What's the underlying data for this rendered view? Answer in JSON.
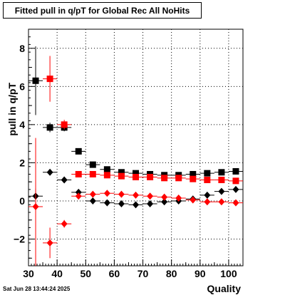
{
  "chart_data": {
    "type": "scatter",
    "title": "Fitted pull in q/pT for Global Rec All NoHits",
    "xlabel": "Quality",
    "ylabel": "pull in q/pT",
    "xlim": [
      30,
      105
    ],
    "ylim": [
      -3.4,
      9.0
    ],
    "xticks": [
      30,
      40,
      50,
      60,
      70,
      80,
      90,
      100
    ],
    "yticks": [
      -2,
      0,
      2,
      4,
      6,
      8
    ],
    "grid": true,
    "timestamp": "Sat Jun 28 13:44:24 2025",
    "series": [
      {
        "color": "#000000",
        "marker": "square",
        "x": [
          32.5,
          37.5,
          42.5,
          47.5,
          52.5,
          57.5,
          62.5,
          67.5,
          72.5,
          77.5,
          82.5,
          87.5,
          92.5,
          97.5,
          102.5
        ],
        "y": [
          6.3,
          3.85,
          3.85,
          2.6,
          1.9,
          1.65,
          1.5,
          1.45,
          1.4,
          1.35,
          1.35,
          1.4,
          1.45,
          1.5,
          1.55
        ],
        "yerr": [
          1.8,
          0.25,
          0.2,
          0.1,
          0.08,
          0.06,
          0.06,
          0.05,
          0.05,
          0.05,
          0.05,
          0.05,
          0.06,
          0.06,
          0.06
        ]
      },
      {
        "color": "#ff0000",
        "marker": "square",
        "x": [
          32.5,
          37.5,
          42.5,
          47.5,
          52.5,
          57.5,
          62.5,
          67.5,
          72.5,
          77.5,
          82.5,
          87.5,
          92.5,
          97.5,
          102.5
        ],
        "y": [
          null,
          6.4,
          4.0,
          1.4,
          1.4,
          1.35,
          1.3,
          1.25,
          1.25,
          1.2,
          1.2,
          1.15,
          1.1,
          1.1,
          1.05
        ],
        "yerr": [
          null,
          1.2,
          0.25,
          0.1,
          0.08,
          0.06,
          0.06,
          0.05,
          0.05,
          0.05,
          0.05,
          0.05,
          0.06,
          0.06,
          0.06
        ]
      },
      {
        "color": "#000000",
        "marker": "diamond",
        "x": [
          32.5,
          37.5,
          42.5,
          47.5,
          52.5,
          57.5,
          62.5,
          67.5,
          72.5,
          77.5,
          82.5,
          87.5,
          92.5,
          97.5,
          102.5
        ],
        "y": [
          0.25,
          1.5,
          1.1,
          0.45,
          0.0,
          -0.1,
          -0.15,
          -0.2,
          -0.15,
          -0.05,
          0.0,
          0.1,
          0.3,
          0.5,
          0.6
        ],
        "yerr": [
          0.4,
          0.15,
          0.1,
          0.08,
          0.06,
          0.05,
          0.05,
          0.05,
          0.05,
          0.05,
          0.05,
          0.05,
          0.05,
          0.06,
          0.06
        ]
      },
      {
        "color": "#ff0000",
        "marker": "diamond",
        "x": [
          32.5,
          37.5,
          42.5,
          47.5,
          52.5,
          57.5,
          62.5,
          67.5,
          72.5,
          77.5,
          82.5,
          87.5,
          92.5,
          97.5,
          102.5
        ],
        "y": [
          -0.3,
          -2.2,
          -1.2,
          0.25,
          0.35,
          0.4,
          0.35,
          0.3,
          0.25,
          0.2,
          0.15,
          0.05,
          -0.05,
          -0.05,
          -0.1
        ],
        "yerr": [
          3.6,
          0.8,
          0.2,
          0.1,
          0.08,
          0.06,
          0.06,
          0.05,
          0.05,
          0.05,
          0.05,
          0.05,
          0.05,
          0.06,
          0.06
        ]
      }
    ]
  }
}
